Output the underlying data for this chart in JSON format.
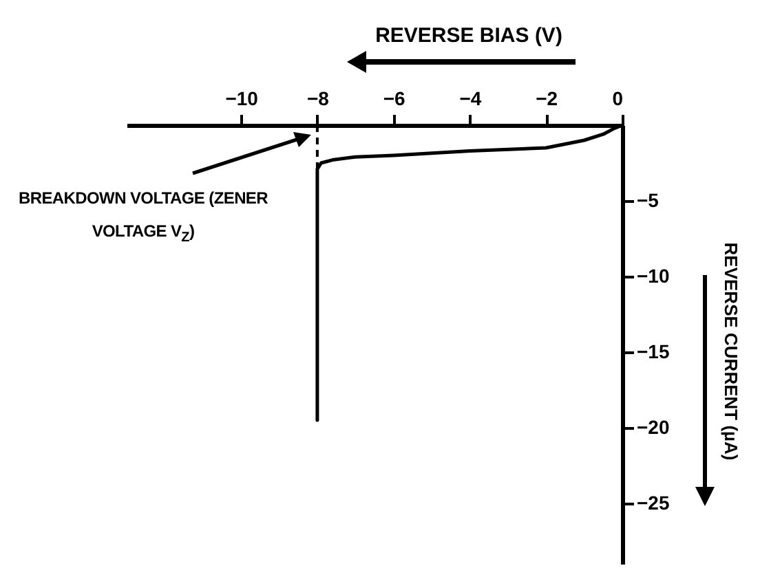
{
  "chart_data": {
    "type": "line",
    "xlabel": "REVERSE BIAS (V)",
    "ylabel": "REVERSE CURRENT (µA)",
    "x": [
      0,
      -0.2,
      -0.5,
      -1,
      -2,
      -4,
      -6,
      -7,
      -7.6,
      -7.9,
      -8,
      -8
    ],
    "series": [
      {
        "color": "#000000",
        "values": [
          0,
          -0.2,
          -0.6,
          -1.0,
          -1.5,
          -1.7,
          -2.0,
          -2.1,
          -2.3,
          -2.5,
          -2.9,
          -19.5
        ]
      }
    ],
    "xlim": [
      -13,
      0
    ],
    "xticks": [
      -10,
      -8,
      -6,
      -4,
      -2,
      0
    ],
    "ylim": [
      -29,
      0
    ],
    "yticks": [
      -25,
      -20,
      -15,
      -10,
      -5
    ],
    "ref_lines": [
      {
        "axis": "x",
        "value": -8,
        "line_style": "dashed",
        "color": "#000000"
      }
    ],
    "annotations": [
      "BREAKDOWN VOLTAGE (ZENER VOLTAGE V$_{Z}$)"
    ],
    "grid": false,
    "marker": "none",
    "line_style": "solid"
  }
}
